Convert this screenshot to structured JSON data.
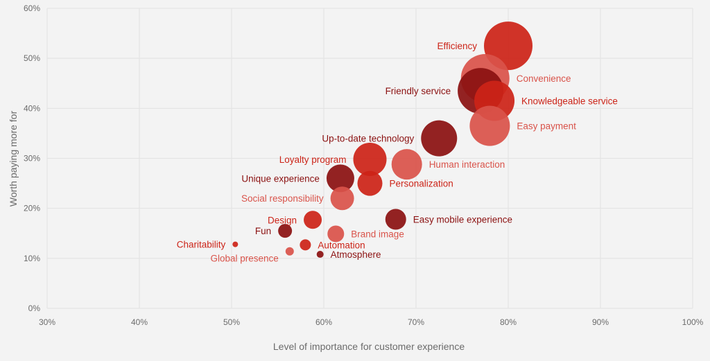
{
  "chart_data": {
    "type": "scatter",
    "xlabel": "Level of importance for customer experience",
    "ylabel": "Worth paying more for",
    "xlim": [
      30,
      100
    ],
    "ylim": [
      0,
      60
    ],
    "x_ticks": [
      "30%",
      "40%",
      "50%",
      "60%",
      "70%",
      "80%",
      "90%",
      "100%"
    ],
    "y_ticks": [
      "0%",
      "10%",
      "20%",
      "30%",
      "40%",
      "50%",
      "60%"
    ],
    "grid": true,
    "colors": {
      "light": "#d9534a",
      "medium": "#cc2418",
      "dark": "#8b1111",
      "background": "#f3f3f3",
      "grid": "#e2e2e2"
    },
    "points": [
      {
        "label": "Efficiency",
        "x": 80.0,
        "y": 52.5,
        "r": 35,
        "tone": "medium",
        "label_side": "left"
      },
      {
        "label": "Convenience",
        "x": 77.5,
        "y": 46.0,
        "r": 35,
        "tone": "light",
        "label_side": "right"
      },
      {
        "label": "Friendly service",
        "x": 77.0,
        "y": 43.5,
        "r": 33,
        "tone": "dark",
        "label_side": "left"
      },
      {
        "label": "Knowledgeable service",
        "x": 78.5,
        "y": 41.5,
        "r": 29,
        "tone": "medium",
        "label_side": "right"
      },
      {
        "label": "Easy payment",
        "x": 78.0,
        "y": 36.5,
        "r": 29,
        "tone": "light",
        "label_side": "right"
      },
      {
        "label": "Up-to-date technology",
        "x": 72.5,
        "y": 34.0,
        "r": 26,
        "tone": "dark",
        "label_side": "left"
      },
      {
        "label": "Human interaction",
        "x": 69.0,
        "y": 28.8,
        "r": 22,
        "tone": "light",
        "label_side": "right"
      },
      {
        "label": "Loyalty program",
        "x": 65.0,
        "y": 29.8,
        "r": 24,
        "tone": "medium",
        "label_side": "left"
      },
      {
        "label": "Personalization",
        "x": 65.0,
        "y": 25.0,
        "r": 18,
        "tone": "medium",
        "label_side": "right"
      },
      {
        "label": "Unique experience",
        "x": 61.8,
        "y": 26.0,
        "r": 20,
        "tone": "dark",
        "label_side": "left"
      },
      {
        "label": "Social responsibility",
        "x": 62.0,
        "y": 22.0,
        "r": 17,
        "tone": "light",
        "label_side": "left"
      },
      {
        "label": "Design",
        "x": 58.8,
        "y": 17.7,
        "r": 13,
        "tone": "medium",
        "label_side": "left"
      },
      {
        "label": "Easy mobile experience",
        "x": 67.8,
        "y": 17.8,
        "r": 15,
        "tone": "dark",
        "label_side": "right"
      },
      {
        "label": "Brand image",
        "x": 61.3,
        "y": 14.9,
        "r": 12,
        "tone": "light",
        "label_side": "right"
      },
      {
        "label": "Fun",
        "x": 55.8,
        "y": 15.5,
        "r": 10,
        "tone": "dark",
        "label_side": "left"
      },
      {
        "label": "Charitability",
        "x": 50.4,
        "y": 12.8,
        "r": 4,
        "tone": "medium",
        "label_side": "left"
      },
      {
        "label": "Automation",
        "x": 58.0,
        "y": 12.7,
        "r": 8,
        "tone": "medium",
        "label_side": "right"
      },
      {
        "label": "Global presence",
        "x": 56.3,
        "y": 11.4,
        "r": 6,
        "tone": "light",
        "label_side": "left-below"
      },
      {
        "label": "Atmosphere",
        "x": 59.6,
        "y": 10.8,
        "r": 5,
        "tone": "dark",
        "label_side": "right"
      }
    ]
  }
}
